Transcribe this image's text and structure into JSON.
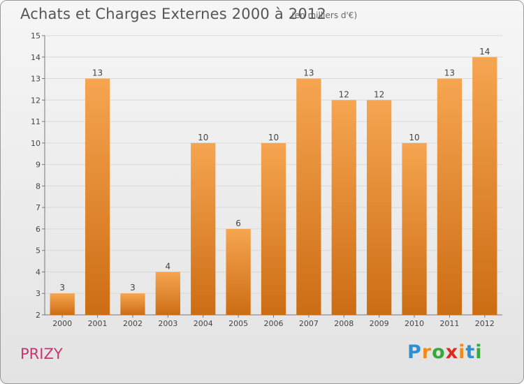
{
  "header": {
    "title": "Achats et Charges Externes 2000 à 2012",
    "subtitle": "(en milliers d'€)"
  },
  "footer": {
    "place": "PRIZY",
    "brand": "Proxiti",
    "brand_letters": [
      {
        "ch": "P",
        "color": "#2f8fd0"
      },
      {
        "ch": "r",
        "color": "#f08c1e"
      },
      {
        "ch": "o",
        "color": "#38a83a"
      },
      {
        "ch": "x",
        "color": "#e4271b"
      },
      {
        "ch": "i",
        "color": "#f08c1e"
      },
      {
        "ch": "t",
        "color": "#2f8fd0"
      },
      {
        "ch": "i",
        "color": "#38a83a"
      }
    ]
  },
  "colors": {
    "bar_top": "#f6a550",
    "bar_bottom": "#cc6d14",
    "place_text": "#c8356e",
    "grid": "#d9d9d9"
  },
  "chart_data": {
    "type": "bar",
    "title": "Achats et Charges Externes 2000 à 2012",
    "subtitle": "(en milliers d'€)",
    "categories": [
      "2000",
      "2001",
      "2002",
      "2003",
      "2004",
      "2005",
      "2006",
      "2007",
      "2008",
      "2009",
      "2010",
      "2011",
      "2012"
    ],
    "values": [
      3,
      13,
      3,
      4,
      10,
      6,
      10,
      13,
      12,
      12,
      10,
      13,
      14
    ],
    "value_labels": [
      "3",
      "13",
      "3",
      "4",
      "10",
      "6",
      "10",
      "13",
      "12",
      "12",
      "10",
      "13",
      "14"
    ],
    "yticks": [
      "2",
      "3",
      "4",
      "5",
      "6",
      "7",
      "8",
      "9",
      "10",
      "11",
      "12",
      "13",
      "14",
      "15"
    ],
    "ylim": [
      2,
      15
    ],
    "xlabel": "",
    "ylabel": "",
    "grid": true,
    "legend": "none"
  }
}
